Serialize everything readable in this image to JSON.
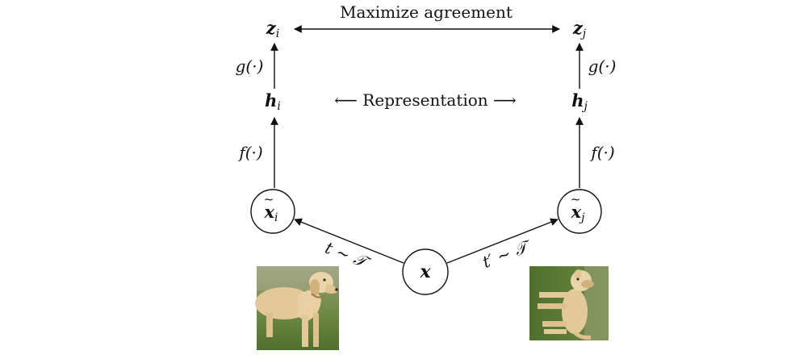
{
  "header": {
    "agreement_label": "Maximize agreement",
    "representation_label": "⟵ Representation ⟶"
  },
  "nodes": {
    "x": {
      "symbol": "x"
    },
    "x_tilde_i": {
      "symbol": "x",
      "subscript": "i"
    },
    "x_tilde_j": {
      "symbol": "x",
      "subscript": "j"
    },
    "h_i": {
      "symbol": "h",
      "subscript": "i"
    },
    "h_j": {
      "symbol": "h",
      "subscript": "j"
    },
    "z_i": {
      "symbol": "z",
      "subscript": "i"
    },
    "z_j": {
      "symbol": "z",
      "subscript": "j"
    }
  },
  "functions": {
    "f_left": "f(·)",
    "f_right": "f(·)",
    "g_left": "g(·)",
    "g_right": "g(·)"
  },
  "augmentations": {
    "left": "t ∼ 𝒯",
    "right": "t′ ∼ 𝒯"
  },
  "images": {
    "left_description": "dog",
    "right_description": "dog"
  },
  "colors": {
    "stroke": "#111111",
    "grass": "#5f7f3a",
    "dog": "#e3c99a"
  }
}
